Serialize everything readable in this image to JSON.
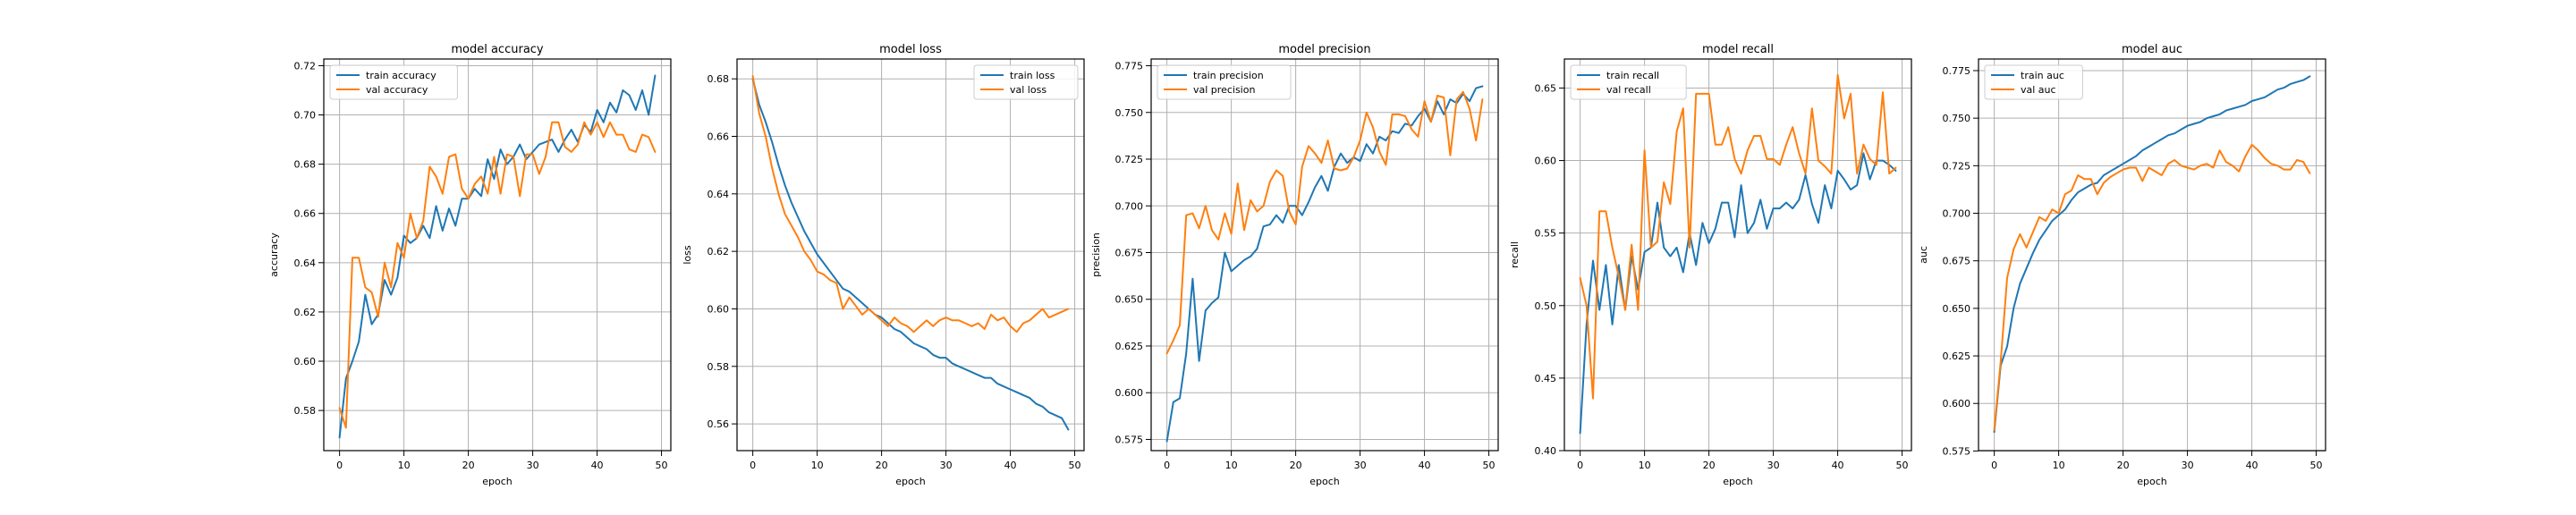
{
  "colors": {
    "train": "#1f77b4",
    "val": "#ff7f0e"
  },
  "chart_data": [
    {
      "type": "line",
      "title": "model accuracy",
      "xlabel": "epoch",
      "ylabel": "accuracy",
      "xlim": [
        -2.45,
        51.45
      ],
      "ylim": [
        0.5637,
        0.7227
      ],
      "xticks": [
        0,
        10,
        20,
        30,
        40,
        50
      ],
      "yticks": [
        0.58,
        0.6,
        0.62,
        0.64,
        0.66,
        0.68,
        0.7,
        0.72
      ],
      "ytick_labels": [
        "0.58",
        "0.60",
        "0.62",
        "0.64",
        "0.66",
        "0.68",
        "0.70",
        "0.72"
      ],
      "grid": true,
      "legend": "top-left",
      "x": [
        0,
        1,
        2,
        3,
        4,
        5,
        6,
        7,
        8,
        9,
        10,
        11,
        12,
        13,
        14,
        15,
        16,
        17,
        18,
        19,
        20,
        21,
        22,
        23,
        24,
        25,
        26,
        27,
        28,
        29,
        30,
        31,
        32,
        33,
        34,
        35,
        36,
        37,
        38,
        39,
        40,
        41,
        42,
        43,
        44,
        45,
        46,
        47,
        48,
        49
      ],
      "series": [
        {
          "name": "train accuracy",
          "color": "train",
          "values": [
            0.569,
            0.593,
            0.6,
            0.608,
            0.627,
            0.615,
            0.619,
            0.633,
            0.627,
            0.634,
            0.651,
            0.648,
            0.65,
            0.655,
            0.65,
            0.663,
            0.653,
            0.662,
            0.655,
            0.666,
            0.666,
            0.67,
            0.667,
            0.682,
            0.674,
            0.686,
            0.68,
            0.683,
            0.688,
            0.682,
            0.685,
            0.688,
            0.689,
            0.69,
            0.685,
            0.69,
            0.694,
            0.689,
            0.696,
            0.693,
            0.702,
            0.697,
            0.705,
            0.701,
            0.71,
            0.708,
            0.702,
            0.71,
            0.7,
            0.716
          ]
        },
        {
          "name": "val accuracy",
          "color": "val",
          "values": [
            0.581,
            0.573,
            0.642,
            0.642,
            0.63,
            0.628,
            0.618,
            0.64,
            0.63,
            0.648,
            0.642,
            0.66,
            0.65,
            0.657,
            0.679,
            0.675,
            0.668,
            0.683,
            0.684,
            0.67,
            0.666,
            0.672,
            0.675,
            0.668,
            0.683,
            0.668,
            0.684,
            0.683,
            0.667,
            0.684,
            0.684,
            0.676,
            0.683,
            0.697,
            0.697,
            0.687,
            0.685,
            0.688,
            0.697,
            0.692,
            0.697,
            0.691,
            0.697,
            0.692,
            0.692,
            0.686,
            0.685,
            0.692,
            0.691,
            0.685
          ]
        }
      ]
    },
    {
      "type": "line",
      "title": "model loss",
      "xlabel": "epoch",
      "ylabel": "loss",
      "xlim": [
        -2.45,
        51.45
      ],
      "ylim": [
        0.5507,
        0.6869
      ],
      "xticks": [
        0,
        10,
        20,
        30,
        40,
        50
      ],
      "yticks": [
        0.56,
        0.58,
        0.6,
        0.62,
        0.64,
        0.66,
        0.68
      ],
      "ytick_labels": [
        "0.56",
        "0.58",
        "0.60",
        "0.62",
        "0.64",
        "0.66",
        "0.68"
      ],
      "grid": true,
      "legend": "top-right",
      "x": [
        0,
        1,
        2,
        3,
        4,
        5,
        6,
        7,
        8,
        9,
        10,
        11,
        12,
        13,
        14,
        15,
        16,
        17,
        18,
        19,
        20,
        21,
        22,
        23,
        24,
        25,
        26,
        27,
        28,
        29,
        30,
        31,
        32,
        33,
        34,
        35,
        36,
        37,
        38,
        39,
        40,
        41,
        42,
        43,
        44,
        45,
        46,
        47,
        48,
        49
      ],
      "series": [
        {
          "name": "train loss",
          "color": "train",
          "values": [
            0.68,
            0.671,
            0.665,
            0.658,
            0.65,
            0.643,
            0.637,
            0.632,
            0.627,
            0.623,
            0.619,
            0.616,
            0.613,
            0.61,
            0.607,
            0.606,
            0.604,
            0.602,
            0.6,
            0.598,
            0.597,
            0.595,
            0.593,
            0.592,
            0.59,
            0.588,
            0.587,
            0.586,
            0.584,
            0.583,
            0.583,
            0.581,
            0.58,
            0.579,
            0.578,
            0.577,
            0.576,
            0.576,
            0.574,
            0.573,
            0.572,
            0.571,
            0.57,
            0.569,
            0.567,
            0.566,
            0.564,
            0.563,
            0.562,
            0.558
          ]
        },
        {
          "name": "val loss",
          "color": "val",
          "values": [
            0.681,
            0.668,
            0.66,
            0.649,
            0.64,
            0.633,
            0.629,
            0.625,
            0.62,
            0.617,
            0.613,
            0.612,
            0.61,
            0.609,
            0.6,
            0.604,
            0.601,
            0.598,
            0.6,
            0.598,
            0.596,
            0.594,
            0.597,
            0.595,
            0.594,
            0.592,
            0.594,
            0.596,
            0.594,
            0.596,
            0.597,
            0.596,
            0.596,
            0.595,
            0.594,
            0.595,
            0.593,
            0.598,
            0.596,
            0.597,
            0.594,
            0.592,
            0.595,
            0.596,
            0.598,
            0.6,
            0.597,
            0.598,
            0.599,
            0.6
          ]
        }
      ]
    },
    {
      "type": "line",
      "title": "model precision",
      "xlabel": "epoch",
      "ylabel": "precision",
      "xlim": [
        -2.45,
        51.45
      ],
      "ylim": [
        0.569,
        0.7786
      ],
      "xticks": [
        0,
        10,
        20,
        30,
        40,
        50
      ],
      "yticks": [
        0.575,
        0.6,
        0.625,
        0.65,
        0.675,
        0.7,
        0.725,
        0.75,
        0.775
      ],
      "ytick_labels": [
        "0.575",
        "0.600",
        "0.625",
        "0.650",
        "0.675",
        "0.700",
        "0.725",
        "0.750",
        "0.775"
      ],
      "grid": true,
      "legend": "top-left",
      "x": [
        0,
        1,
        2,
        3,
        4,
        5,
        6,
        7,
        8,
        9,
        10,
        11,
        12,
        13,
        14,
        15,
        16,
        17,
        18,
        19,
        20,
        21,
        22,
        23,
        24,
        25,
        26,
        27,
        28,
        29,
        30,
        31,
        32,
        33,
        34,
        35,
        36,
        37,
        38,
        39,
        40,
        41,
        42,
        43,
        44,
        45,
        46,
        47,
        48,
        49
      ],
      "series": [
        {
          "name": "train precision",
          "color": "train",
          "values": [
            0.574,
            0.595,
            0.597,
            0.621,
            0.661,
            0.617,
            0.644,
            0.648,
            0.651,
            0.675,
            0.665,
            0.668,
            0.671,
            0.673,
            0.677,
            0.689,
            0.69,
            0.695,
            0.691,
            0.7,
            0.7,
            0.695,
            0.702,
            0.71,
            0.716,
            0.708,
            0.721,
            0.728,
            0.723,
            0.726,
            0.724,
            0.733,
            0.728,
            0.737,
            0.735,
            0.74,
            0.739,
            0.744,
            0.743,
            0.748,
            0.752,
            0.745,
            0.756,
            0.749,
            0.757,
            0.755,
            0.76,
            0.756,
            0.763,
            0.764
          ]
        },
        {
          "name": "val precision",
          "color": "val",
          "values": [
            0.621,
            0.628,
            0.636,
            0.695,
            0.696,
            0.688,
            0.7,
            0.687,
            0.682,
            0.696,
            0.685,
            0.712,
            0.687,
            0.703,
            0.697,
            0.7,
            0.713,
            0.719,
            0.716,
            0.697,
            0.69,
            0.721,
            0.732,
            0.728,
            0.723,
            0.735,
            0.72,
            0.719,
            0.72,
            0.726,
            0.735,
            0.75,
            0.742,
            0.729,
            0.722,
            0.749,
            0.749,
            0.748,
            0.741,
            0.737,
            0.756,
            0.745,
            0.759,
            0.758,
            0.727,
            0.757,
            0.761,
            0.752,
            0.735,
            0.757
          ]
        }
      ]
    },
    {
      "type": "line",
      "title": "model recall",
      "xlabel": "epoch",
      "ylabel": "recall",
      "xlim": [
        -2.45,
        51.45
      ],
      "ylim": [
        0.4,
        0.67
      ],
      "xticks": [
        0,
        10,
        20,
        30,
        40,
        50
      ],
      "yticks": [
        0.4,
        0.45,
        0.5,
        0.55,
        0.6,
        0.65
      ],
      "ytick_labels": [
        "0.40",
        "0.45",
        "0.50",
        "0.55",
        "0.60",
        "0.65"
      ],
      "grid": true,
      "legend": "top-left",
      "x": [
        0,
        1,
        2,
        3,
        4,
        5,
        6,
        7,
        8,
        9,
        10,
        11,
        12,
        13,
        14,
        15,
        16,
        17,
        18,
        19,
        20,
        21,
        22,
        23,
        24,
        25,
        26,
        27,
        28,
        29,
        30,
        31,
        32,
        33,
        34,
        35,
        36,
        37,
        38,
        39,
        40,
        41,
        42,
        43,
        44,
        45,
        46,
        47,
        48,
        49
      ],
      "series": [
        {
          "name": "train recall",
          "color": "train",
          "values": [
            0.412,
            0.487,
            0.531,
            0.497,
            0.528,
            0.487,
            0.528,
            0.497,
            0.534,
            0.511,
            0.537,
            0.54,
            0.571,
            0.54,
            0.534,
            0.54,
            0.523,
            0.55,
            0.528,
            0.557,
            0.543,
            0.553,
            0.571,
            0.571,
            0.547,
            0.583,
            0.55,
            0.557,
            0.573,
            0.553,
            0.567,
            0.567,
            0.571,
            0.567,
            0.573,
            0.59,
            0.57,
            0.557,
            0.583,
            0.567,
            0.593,
            0.587,
            0.58,
            0.583,
            0.605,
            0.587,
            0.6,
            0.6,
            0.597,
            0.593
          ]
        },
        {
          "name": "val recall",
          "color": "val",
          "values": [
            0.519,
            0.5,
            0.436,
            0.565,
            0.565,
            0.54,
            0.52,
            0.497,
            0.542,
            0.497,
            0.607,
            0.54,
            0.544,
            0.585,
            0.57,
            0.62,
            0.636,
            0.54,
            0.646,
            0.646,
            0.646,
            0.611,
            0.611,
            0.623,
            0.601,
            0.591,
            0.607,
            0.617,
            0.617,
            0.601,
            0.601,
            0.597,
            0.611,
            0.623,
            0.605,
            0.591,
            0.636,
            0.6,
            0.596,
            0.591,
            0.659,
            0.629,
            0.646,
            0.591,
            0.611,
            0.601,
            0.597,
            0.647,
            0.591,
            0.595
          ]
        }
      ]
    },
    {
      "type": "line",
      "title": "model auc",
      "xlabel": "epoch",
      "ylabel": "auc",
      "xlim": [
        -2.45,
        51.45
      ],
      "ylim": [
        0.5752,
        0.7811
      ],
      "xticks": [
        0,
        10,
        20,
        30,
        40,
        50
      ],
      "yticks": [
        0.575,
        0.6,
        0.625,
        0.65,
        0.675,
        0.7,
        0.725,
        0.75,
        0.775
      ],
      "ytick_labels": [
        "0.575",
        "0.600",
        "0.625",
        "0.650",
        "0.675",
        "0.700",
        "0.725",
        "0.750",
        "0.775"
      ],
      "grid": true,
      "legend": "top-left",
      "x": [
        0,
        1,
        2,
        3,
        4,
        5,
        6,
        7,
        8,
        9,
        10,
        11,
        12,
        13,
        14,
        15,
        16,
        17,
        18,
        19,
        20,
        21,
        22,
        23,
        24,
        25,
        26,
        27,
        28,
        29,
        30,
        31,
        32,
        33,
        34,
        35,
        36,
        37,
        38,
        39,
        40,
        41,
        42,
        43,
        44,
        45,
        46,
        47,
        48,
        49
      ],
      "series": [
        {
          "name": "train auc",
          "color": "train",
          "values": [
            0.585,
            0.62,
            0.63,
            0.65,
            0.663,
            0.671,
            0.679,
            0.686,
            0.691,
            0.696,
            0.699,
            0.702,
            0.707,
            0.711,
            0.713,
            0.715,
            0.716,
            0.72,
            0.722,
            0.724,
            0.726,
            0.728,
            0.73,
            0.733,
            0.735,
            0.737,
            0.739,
            0.741,
            0.742,
            0.744,
            0.746,
            0.747,
            0.748,
            0.75,
            0.751,
            0.752,
            0.754,
            0.755,
            0.756,
            0.757,
            0.759,
            0.76,
            0.761,
            0.763,
            0.765,
            0.766,
            0.768,
            0.769,
            0.77,
            0.772
          ]
        },
        {
          "name": "val auc",
          "color": "val",
          "values": [
            0.586,
            0.622,
            0.666,
            0.681,
            0.689,
            0.682,
            0.69,
            0.698,
            0.696,
            0.702,
            0.7,
            0.71,
            0.712,
            0.72,
            0.718,
            0.718,
            0.71,
            0.716,
            0.719,
            0.721,
            0.723,
            0.724,
            0.724,
            0.717,
            0.724,
            0.722,
            0.72,
            0.726,
            0.728,
            0.725,
            0.724,
            0.723,
            0.725,
            0.726,
            0.724,
            0.733,
            0.727,
            0.725,
            0.722,
            0.73,
            0.736,
            0.733,
            0.729,
            0.726,
            0.725,
            0.723,
            0.723,
            0.728,
            0.727,
            0.721
          ]
        }
      ]
    }
  ]
}
